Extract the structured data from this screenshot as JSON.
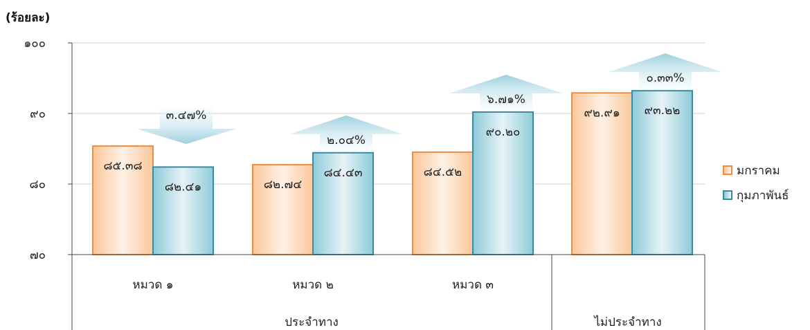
{
  "unit_label": "(ร้อยละ)",
  "chart_data": {
    "type": "bar",
    "ylim": [
      70,
      100
    ],
    "yticks": [
      70,
      80,
      90,
      100
    ],
    "ytick_labels": [
      "๗๐",
      "๘๐",
      "๙๐",
      "๑๐๐"
    ],
    "grid": true,
    "legend_position": "right",
    "categories": [
      "หมวด ๑",
      "หมวด ๒",
      "หมวด ๓",
      ""
    ],
    "groups": [
      {
        "label": "ประจำทาง",
        "categories": [
          "หมวด ๑",
          "หมวด ๒",
          "หมวด ๓"
        ]
      },
      {
        "label": "ไม่ประจำทาง",
        "categories": [
          ""
        ]
      }
    ],
    "series": [
      {
        "name": "มกราคม",
        "color": "#f08c3c",
        "values": [
          85.38,
          82.74,
          84.52,
          92.91
        ],
        "labels": [
          "๘๕.๓๘",
          "๘๒.๗๔",
          "๘๔.๕๒",
          "๙๒.๙๑"
        ]
      },
      {
        "name": "กุมภาพันธ์",
        "color": "#3d8aa0",
        "values": [
          82.41,
          84.43,
          90.2,
          93.22
        ],
        "labels": [
          "๘๒.๔๑",
          "๘๔.๔๓",
          "๙๐.๒๐",
          "๙๓.๒๒"
        ]
      }
    ],
    "changes": [
      {
        "label": "๓.๔๗%",
        "direction": "down"
      },
      {
        "label": "๒.๐๔%",
        "direction": "up"
      },
      {
        "label": "๖.๗๑%",
        "direction": "up"
      },
      {
        "label": "๐.๓๓%",
        "direction": "up"
      }
    ]
  }
}
